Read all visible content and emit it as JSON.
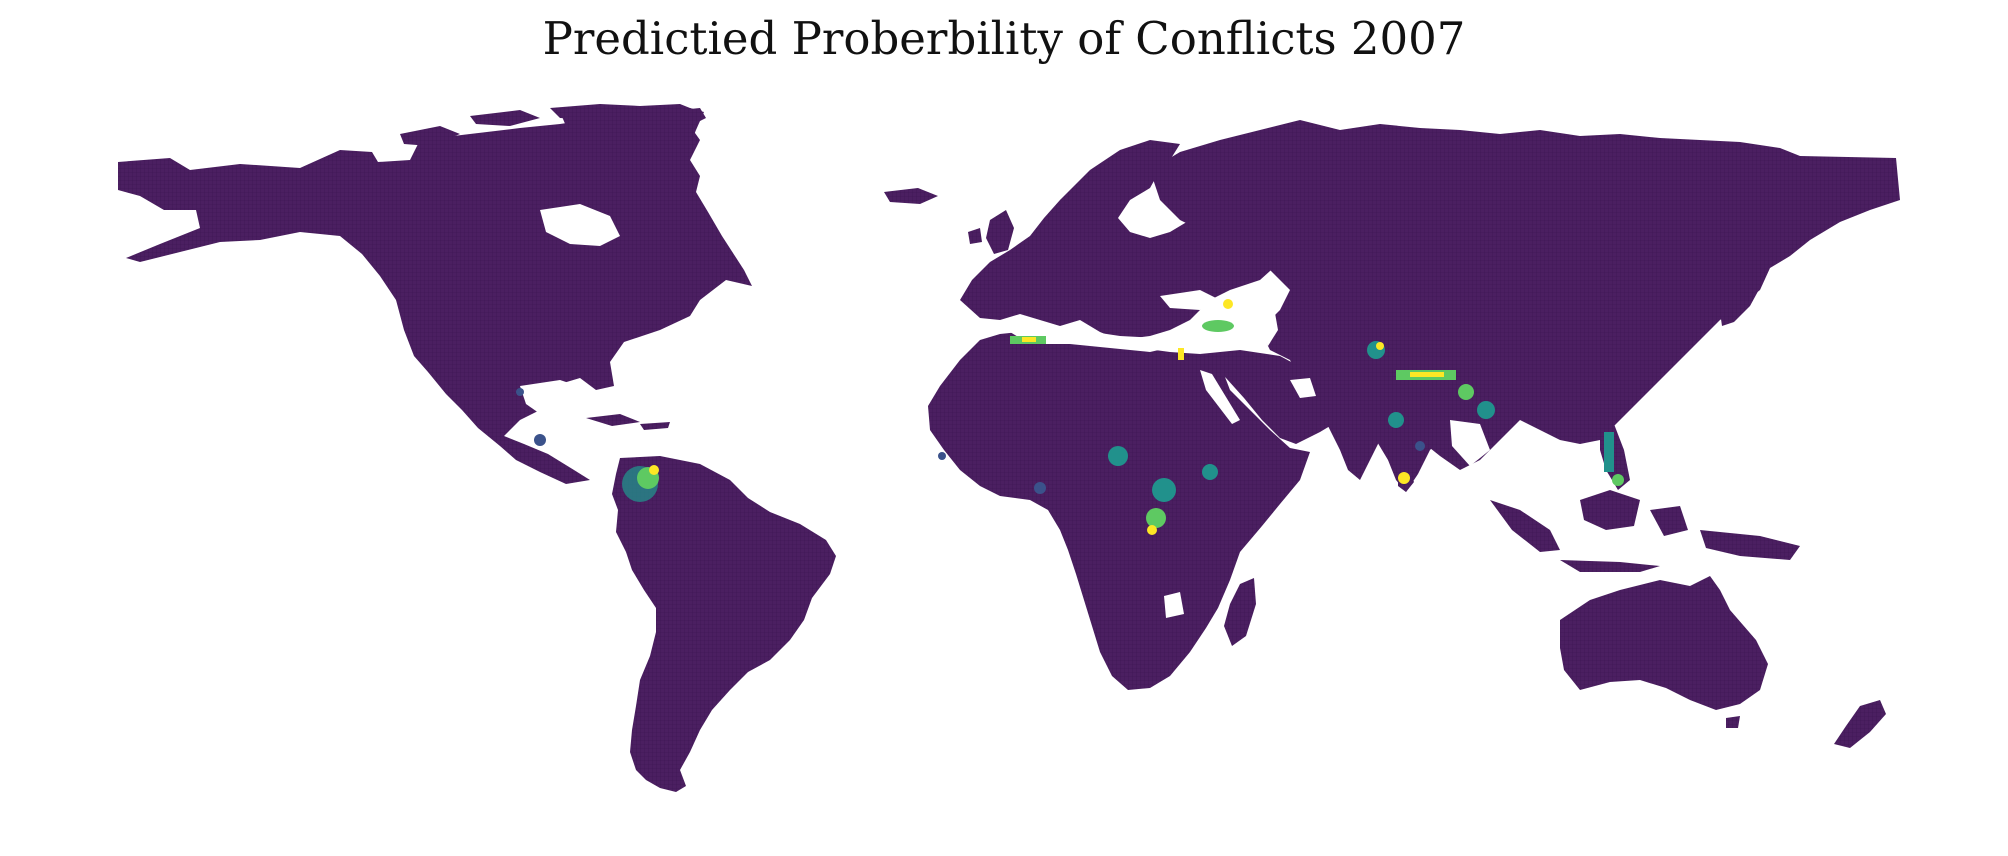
{
  "title": "Predictied Proberbility of Conflicts 2007",
  "colors": {
    "land_base": "#4b1f61",
    "low": "#3b528b",
    "mid": "#21918c",
    "high": "#5ec962",
    "peak": "#fde725",
    "background": "#ffffff"
  },
  "map": {
    "projection": "equirectangular",
    "style": "gridded cells, viridis color scale, no axes",
    "hotspots": [
      {
        "region": "Colombia",
        "intensity": "high"
      },
      {
        "region": "Central America",
        "intensity": "low"
      },
      {
        "region": "Algeria",
        "intensity": "high"
      },
      {
        "region": "Israel / Palestine",
        "intensity": "peak"
      },
      {
        "region": "Turkey / Caucasus",
        "intensity": "high"
      },
      {
        "region": "Afghanistan / Pakistan",
        "intensity": "high"
      },
      {
        "region": "Northern India / Nepal",
        "intensity": "peak"
      },
      {
        "region": "Central India",
        "intensity": "mid"
      },
      {
        "region": "Sri Lanka",
        "intensity": "peak"
      },
      {
        "region": "Myanmar / Northeast India",
        "intensity": "mid"
      },
      {
        "region": "Philippines",
        "intensity": "high"
      },
      {
        "region": "Sudan / Chad",
        "intensity": "mid"
      },
      {
        "region": "Uganda / DR Congo",
        "intensity": "high"
      },
      {
        "region": "Nigeria",
        "intensity": "low"
      },
      {
        "region": "Ethiopia / Somalia",
        "intensity": "mid"
      },
      {
        "region": "West Africa coast",
        "intensity": "low"
      }
    ]
  }
}
